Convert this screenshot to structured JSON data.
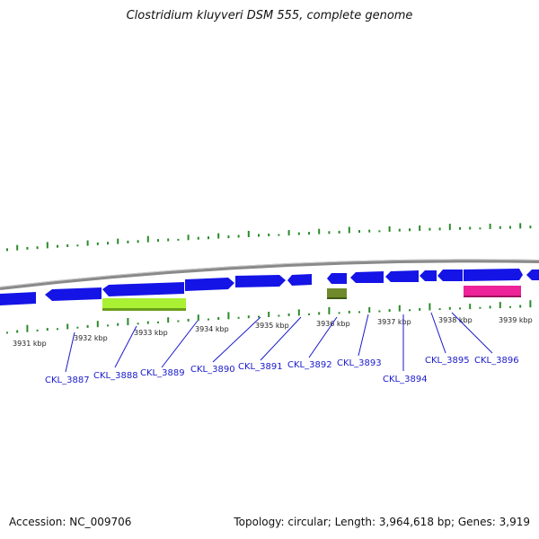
{
  "title": "Clostridium kluyveri DSM 555, complete genome",
  "footer": {
    "accession": "Accession: NC_009706",
    "summary": "Topology: circular; Length: 3,964,618 bp; Genes: 3,919"
  },
  "ticks": [
    "3931 kbp",
    "3932 kbp",
    "3933 kbp",
    "3934 kbp",
    "3935 kbp",
    "3936 kbp",
    "3937 kbp",
    "3938 kbp",
    "3939 kbp"
  ],
  "gene_labels": [
    "CKL_3887",
    "CKL_3888",
    "CKL_3889",
    "CKL_3890",
    "CKL_3891",
    "CKL_3892",
    "CKL_3893",
    "CKL_3894",
    "CKL_3895",
    "CKL_3896"
  ],
  "colors": {
    "gene": "#1414e6",
    "backbone": "#8a8a8a",
    "tick": "#2a8a2a",
    "feature_a": "#aaf033",
    "feature_b": "#6f8a2a",
    "feature_c": "#ee2299",
    "label": "#1a1acc"
  }
}
